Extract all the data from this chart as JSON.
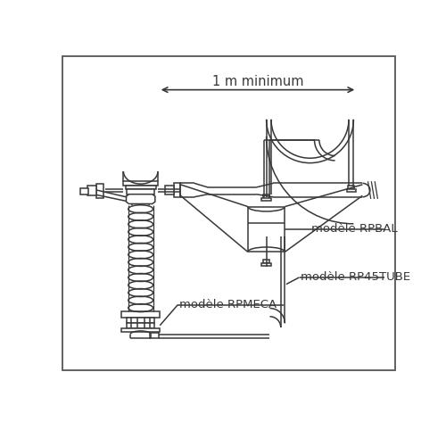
{
  "label_rpbal": "modèle RPBAL",
  "label_rp45tube": "modèle RP45TUBE",
  "label_rpmeca": "modèle RPMECA",
  "label_distance": "1 m minimum",
  "ec": "#383838",
  "lw": 1.1
}
